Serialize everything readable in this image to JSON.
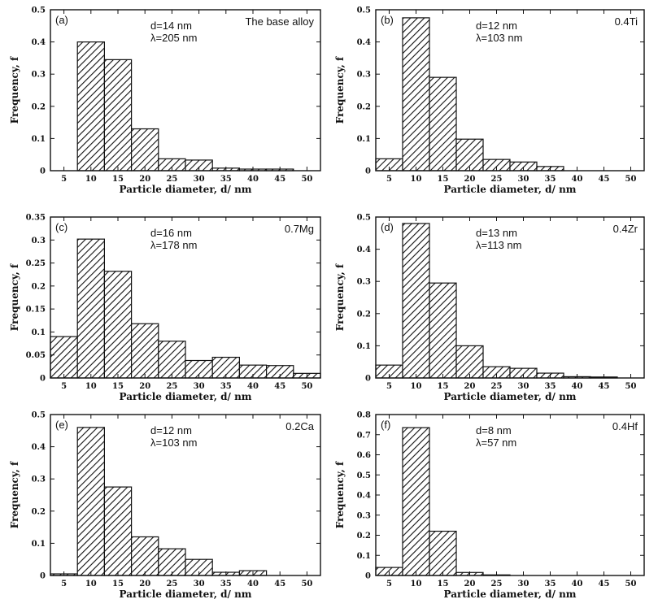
{
  "chart_data": [
    {
      "type": "bar",
      "panel_label": "(a)",
      "alloy": "The base alloy",
      "d_text": "d=14 nm",
      "lambda_text": "λ=205 nm",
      "categories": [
        "5",
        "10",
        "15",
        "20",
        "25",
        "30",
        "35",
        "40",
        "45",
        "50"
      ],
      "values": [
        0,
        0.4,
        0.345,
        0.13,
        0.037,
        0.033,
        0.008,
        0.005,
        0.005,
        0
      ],
      "xlabel": "Particle diameter, d/ nm",
      "ylabel": "Frequency, f",
      "ylim": [
        0,
        0.5
      ],
      "yticks": [
        0,
        0.1,
        0.2,
        0.3,
        0.4,
        0.5
      ],
      "ytick_labels": [
        "0",
        "0.1",
        "0.2",
        "0.3",
        "0.4",
        "0.5"
      ]
    },
    {
      "type": "bar",
      "panel_label": "(b)",
      "alloy": "0.4Ti",
      "d_text": "d=12 nm",
      "lambda_text": "λ=103 nm",
      "categories": [
        "5",
        "10",
        "15",
        "20",
        "25",
        "30",
        "35",
        "40",
        "45",
        "50"
      ],
      "values": [
        0.037,
        0.475,
        0.29,
        0.098,
        0.035,
        0.027,
        0.013,
        0,
        0,
        0
      ],
      "xlabel": "Particle diameter, d/ nm",
      "ylabel": "Frequency, f",
      "ylim": [
        0,
        0.5
      ],
      "yticks": [
        0,
        0.1,
        0.2,
        0.3,
        0.4,
        0.5
      ],
      "ytick_labels": [
        "0",
        "0.1",
        "0.2",
        "0.3",
        "0.4",
        "0.5"
      ]
    },
    {
      "type": "bar",
      "panel_label": "(c)",
      "alloy": "0.7Mg",
      "d_text": "d=16 nm",
      "lambda_text": "λ=178 nm",
      "categories": [
        "5",
        "10",
        "15",
        "20",
        "25",
        "30",
        "35",
        "40",
        "45",
        "50"
      ],
      "values": [
        0.09,
        0.302,
        0.232,
        0.118,
        0.08,
        0.038,
        0.045,
        0.028,
        0.027,
        0.01
      ],
      "xlabel": "Particle diameter, d/ nm",
      "ylabel": "Frequency, f",
      "ylim": [
        0,
        0.35
      ],
      "yticks": [
        0,
        0.05,
        0.1,
        0.15,
        0.2,
        0.25,
        0.3,
        0.35
      ],
      "ytick_labels": [
        "0",
        "0.05",
        "0.1",
        "0.15",
        "0.2",
        "0.25",
        "0.3",
        "0.35"
      ]
    },
    {
      "type": "bar",
      "panel_label": "(d)",
      "alloy": "0.4Zr",
      "d_text": "d=13 nm",
      "lambda_text": "λ=113 nm",
      "categories": [
        "5",
        "10",
        "15",
        "20",
        "25",
        "30",
        "35",
        "40",
        "45",
        "50"
      ],
      "values": [
        0.04,
        0.48,
        0.295,
        0.1,
        0.035,
        0.03,
        0.015,
        0.004,
        0.003,
        0
      ],
      "xlabel": "Particle diameter, d/ nm",
      "ylabel": "Frequency, f",
      "ylim": [
        0,
        0.5
      ],
      "yticks": [
        0,
        0.1,
        0.2,
        0.3,
        0.4,
        0.5
      ],
      "ytick_labels": [
        "0",
        "0.1",
        "0.2",
        "0.3",
        "0.4",
        "0.5"
      ]
    },
    {
      "type": "bar",
      "panel_label": "(e)",
      "alloy": "0.2Ca",
      "d_text": "d=12 nm",
      "lambda_text": "λ=103 nm",
      "categories": [
        "5",
        "10",
        "15",
        "20",
        "25",
        "30",
        "35",
        "40",
        "45",
        "50"
      ],
      "values": [
        0.005,
        0.46,
        0.275,
        0.12,
        0.083,
        0.05,
        0.01,
        0.015,
        0,
        0
      ],
      "xlabel": "Particle diameter, d/ nm",
      "ylabel": "Frequency, f",
      "ylim": [
        0,
        0.5
      ],
      "yticks": [
        0,
        0.1,
        0.2,
        0.3,
        0.4,
        0.5
      ],
      "ytick_labels": [
        "0",
        "0.1",
        "0.2",
        "0.3",
        "0.4",
        "0.5"
      ]
    },
    {
      "type": "bar",
      "panel_label": "(f)",
      "alloy": "0.4Hf",
      "d_text": "d=8 nm",
      "lambda_text": "λ=57 nm",
      "categories": [
        "5",
        "10",
        "15",
        "20",
        "25",
        "30",
        "35",
        "40",
        "45",
        "50"
      ],
      "values": [
        0.04,
        0.735,
        0.22,
        0.015,
        0.003,
        0,
        0,
        0,
        0,
        0
      ],
      "xlabel": "Particle diameter, d/ nm",
      "ylabel": "Frequency, f",
      "ylim": [
        0,
        0.8
      ],
      "yticks": [
        0,
        0.1,
        0.2,
        0.3,
        0.4,
        0.5,
        0.6,
        0.7,
        0.8
      ],
      "ytick_labels": [
        "0",
        "0.1",
        "0.2",
        "0.3",
        "0.4",
        "0.5",
        "0.6",
        "0.7",
        "0.8"
      ]
    }
  ]
}
